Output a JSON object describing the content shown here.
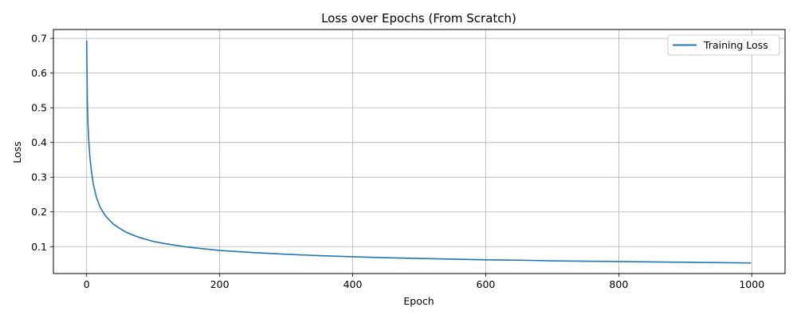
{
  "chart_data": {
    "type": "line",
    "title": "Loss over Epochs (From Scratch)",
    "xlabel": "Epoch",
    "ylabel": "Loss",
    "xlim": [
      -50,
      1050
    ],
    "ylim": [
      0.0225,
      0.7255
    ],
    "xticks": [
      0,
      200,
      400,
      600,
      800,
      1000
    ],
    "yticks": [
      0.1,
      0.2,
      0.3,
      0.4,
      0.5,
      0.6,
      0.7
    ],
    "xtick_labels": [
      "0",
      "200",
      "400",
      "600",
      "800",
      "1000"
    ],
    "ytick_labels": [
      "0.1",
      "0.2",
      "0.3",
      "0.4",
      "0.5",
      "0.6",
      "0.7"
    ],
    "grid": true,
    "legend_position": "top-right",
    "series": [
      {
        "name": "Training Loss",
        "color": "#1f77b4",
        "x": [
          0,
          1,
          2,
          3,
          5,
          7,
          10,
          15,
          20,
          25,
          30,
          40,
          50,
          60,
          70,
          80,
          100,
          120,
          150,
          200,
          250,
          300,
          350,
          400,
          450,
          500,
          550,
          600,
          650,
          700,
          750,
          800,
          850,
          900,
          950,
          999
        ],
        "y": [
          0.693,
          0.52,
          0.45,
          0.41,
          0.355,
          0.32,
          0.28,
          0.24,
          0.215,
          0.198,
          0.185,
          0.165,
          0.152,
          0.141,
          0.133,
          0.126,
          0.115,
          0.108,
          0.099,
          0.089,
          0.083,
          0.078,
          0.074,
          0.071,
          0.068,
          0.066,
          0.064,
          0.062,
          0.061,
          0.059,
          0.058,
          0.057,
          0.056,
          0.055,
          0.054,
          0.053
        ]
      }
    ]
  }
}
